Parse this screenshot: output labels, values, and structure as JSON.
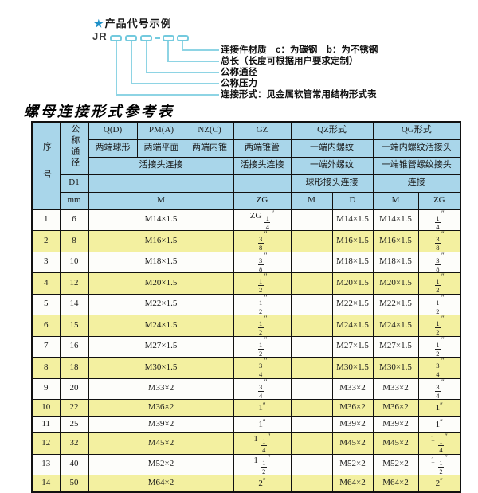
{
  "diagram": {
    "star": "★",
    "title": "产品代号示例",
    "prefix": "JR",
    "dash": "-",
    "labels": [
      "连接件材质　c：为碳钢　b：为不锈钢",
      "总长（长度可根据用户要求定制）",
      "公称通径",
      "公称压力",
      "连接形式：见金属软管常用结构形式表"
    ]
  },
  "colors": {
    "header_blue": "#a9d6ea",
    "row_yellow": "#f3f0a0",
    "diagram_cyan": "#74cade",
    "star_blue": "#1e90c8"
  },
  "table": {
    "title": "螺母连接形式参考表",
    "header": {
      "seq": "序号",
      "dn": "公称通径",
      "d1": "D1",
      "mm": "mm",
      "col_q": "Q(D)",
      "col_pm": "PM(A)",
      "col_nz": "NZ(C)",
      "col_gz": "GZ",
      "col_qz": "QZ形式",
      "col_qg": "QG形式",
      "q_desc": "两端球形",
      "pm_desc": "两端平面",
      "nz_desc": "两端内锥",
      "gz_desc": "两端锥管",
      "qz_desc1": "一端内螺纹",
      "qg_desc1": "一端内螺纹活接头",
      "union_conn": "活接头连接",
      "gz_conn": "活接头连接",
      "qz_desc2": "一端外螺纹",
      "qg_desc2": "一端锥管螺纹接头",
      "qz_conn": "球形接头连接",
      "qg_conn": "连接",
      "m": "M",
      "zg": "ZG",
      "qz_m": "M",
      "qz_d": "D",
      "qg_m": "M",
      "qg_zg": "ZG"
    },
    "rows": [
      {
        "seq": "1",
        "dn": "6",
        "m": "M14×1.5",
        "zg": "ZG 1/4″",
        "qz_m": "",
        "qz_d": "M14×1.5",
        "qg_m": "M14×1.5",
        "qg_zg": "1/4″"
      },
      {
        "seq": "2",
        "dn": "8",
        "m": "M16×1.5",
        "zg": "3/8″",
        "qz_m": "",
        "qz_d": "M16×1.5",
        "qg_m": "M16×1.5",
        "qg_zg": "3/8″"
      },
      {
        "seq": "3",
        "dn": "10",
        "m": "M18×1.5",
        "zg": "3/8″",
        "qz_m": "",
        "qz_d": "M18×1.5",
        "qg_m": "M18×1.5",
        "qg_zg": "3/8″"
      },
      {
        "seq": "4",
        "dn": "12",
        "m": "M20×1.5",
        "zg": "1/2″",
        "qz_m": "",
        "qz_d": "M20×1.5",
        "qg_m": "M20×1.5",
        "qg_zg": "1/2″"
      },
      {
        "seq": "5",
        "dn": "14",
        "m": "M22×1.5",
        "zg": "1/2″",
        "qz_m": "",
        "qz_d": "M22×1.5",
        "qg_m": "M22×1.5",
        "qg_zg": "1/2″"
      },
      {
        "seq": "6",
        "dn": "15",
        "m": "M24×1.5",
        "zg": "1/2″",
        "qz_m": "",
        "qz_d": "M24×1.5",
        "qg_m": "M24×1.5",
        "qg_zg": "1/2″"
      },
      {
        "seq": "7",
        "dn": "16",
        "m": "M27×1.5",
        "zg": "1/2″",
        "qz_m": "",
        "qz_d": "M27×1.5",
        "qg_m": "M27×1.5",
        "qg_zg": "1/2″"
      },
      {
        "seq": "8",
        "dn": "18",
        "m": "M30×1.5",
        "zg": "3/4″",
        "qz_m": "",
        "qz_d": "M30×1.5",
        "qg_m": "M30×1.5",
        "qg_zg": "3/4″"
      },
      {
        "seq": "9",
        "dn": "20",
        "m": "M33×2",
        "zg": "3/4″",
        "qz_m": "",
        "qz_d": "M33×2",
        "qg_m": "M33×2",
        "qg_zg": "3/4″"
      },
      {
        "seq": "10",
        "dn": "22",
        "m": "M36×2",
        "zg": "1″",
        "qz_m": "",
        "qz_d": "M36×2",
        "qg_m": "M36×2",
        "qg_zg": "1″"
      },
      {
        "seq": "11",
        "dn": "25",
        "m": "M39×2",
        "zg": "1″",
        "qz_m": "",
        "qz_d": "M39×2",
        "qg_m": "M39×2",
        "qg_zg": "1″"
      },
      {
        "seq": "12",
        "dn": "32",
        "m": "M45×2",
        "zg": "1 1/4″",
        "qz_m": "",
        "qz_d": "M45×2",
        "qg_m": "M45×2",
        "qg_zg": "1 1/4″"
      },
      {
        "seq": "13",
        "dn": "40",
        "m": "M52×2",
        "zg": "1 1/2″",
        "qz_m": "",
        "qz_d": "M52×2",
        "qg_m": "M52×2",
        "qg_zg": "1 1/2″"
      },
      {
        "seq": "14",
        "dn": "50",
        "m": "M64×2",
        "zg": "2″",
        "qz_m": "",
        "qz_d": "M64×2",
        "qg_m": "M64×2",
        "qg_zg": "2″"
      }
    ]
  }
}
